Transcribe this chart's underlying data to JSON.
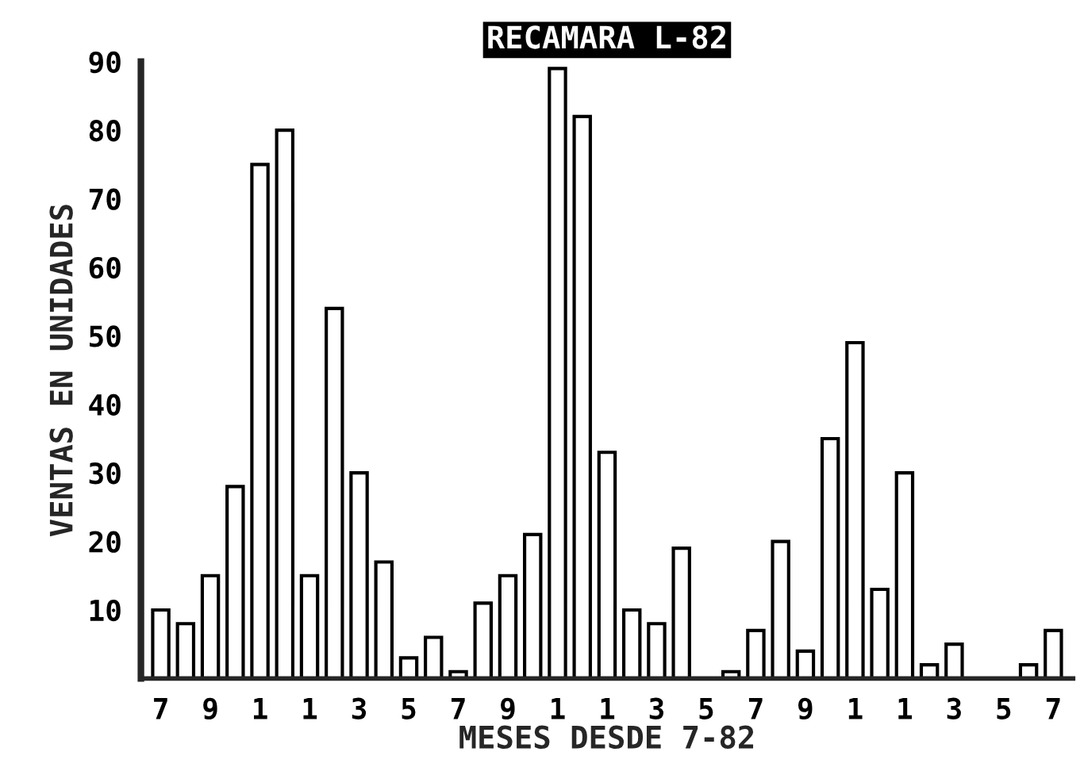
{
  "chart_data": {
    "type": "bar",
    "title": "RECAMARA L-82",
    "xlabel": "MESES DESDE 7-82",
    "ylabel": "VENTAS EN UNIDADES",
    "categories": [
      "7",
      null,
      "9",
      null,
      "1",
      null,
      "1",
      null,
      "3",
      null,
      "5",
      null,
      "7",
      null,
      "9",
      null,
      "1",
      null,
      "1",
      null,
      "3",
      null,
      "5",
      null,
      "7",
      null,
      "9",
      null,
      "1",
      null,
      "1",
      null,
      "3",
      null,
      "5",
      null,
      "7"
    ],
    "values": [
      10,
      8,
      15,
      28,
      75,
      80,
      15,
      54,
      30,
      17,
      3,
      6,
      1,
      11,
      15,
      21,
      89,
      82,
      33,
      10,
      8,
      19,
      null,
      1,
      7,
      20,
      4,
      35,
      49,
      13,
      30,
      2,
      5,
      null,
      null,
      2,
      7
    ],
    "color": "#ffffff",
    "ylim": [
      0,
      90
    ],
    "yticks": [
      10,
      20,
      30,
      40,
      50,
      60,
      70,
      80,
      90
    ],
    "grid": false
  }
}
